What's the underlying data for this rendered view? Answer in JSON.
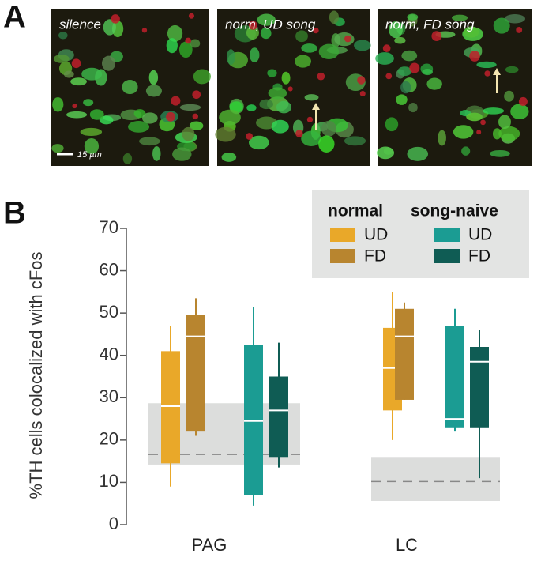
{
  "panel_a": {
    "label": "A",
    "images": [
      {
        "caption": "silence"
      },
      {
        "caption": "norm, UD song"
      },
      {
        "caption": "norm, FD song"
      }
    ],
    "scale_bar": "15 µm"
  },
  "chart_data": {
    "type": "box",
    "panel_label": "B",
    "y_label": "%TH cells colocalized with cFos",
    "categories": [
      "PAG",
      "LC"
    ],
    "ylim": [
      0,
      70
    ],
    "yticks": [
      0,
      10,
      20,
      30,
      40,
      50,
      60,
      70
    ],
    "groups": [
      {
        "name": "normal",
        "series": [
          {
            "name": "UD",
            "color": "#e9a829",
            "boxes": [
              {
                "min": 9,
                "q1": 14.5,
                "median": 28,
                "q3": 41,
                "max": 47
              },
              {
                "min": 20,
                "q1": 27,
                "median": 37,
                "q3": 46.5,
                "max": 55
              }
            ]
          },
          {
            "name": "FD",
            "color": "#b8852f",
            "boxes": [
              {
                "min": 21,
                "q1": 22,
                "median": 44.5,
                "q3": 49.5,
                "max": 53.5
              },
              {
                "min": 29.5,
                "q1": 29.5,
                "median": 44.5,
                "q3": 51,
                "max": 52.5
              }
            ]
          }
        ]
      },
      {
        "name": "song-naive",
        "series": [
          {
            "name": "UD",
            "color": "#1b9c93",
            "boxes": [
              {
                "min": 4.5,
                "q1": 7,
                "median": 24.5,
                "q3": 42.5,
                "max": 51.5
              },
              {
                "min": 22,
                "q1": 23,
                "median": 25,
                "q3": 47,
                "max": 51
              }
            ]
          },
          {
            "name": "FD",
            "color": "#0f5c54",
            "boxes": [
              {
                "min": 13.5,
                "q1": 16,
                "median": 27,
                "q3": 35,
                "max": 43
              },
              {
                "min": 11,
                "q1": 23,
                "median": 38.5,
                "q3": 42,
                "max": 46
              }
            ]
          }
        ]
      }
    ],
    "silence_bands": [
      {
        "low": 14.2,
        "high": 28.7,
        "dash": 16.6
      },
      {
        "low": 5.6,
        "high": 16,
        "dash": 10.2
      }
    ]
  }
}
